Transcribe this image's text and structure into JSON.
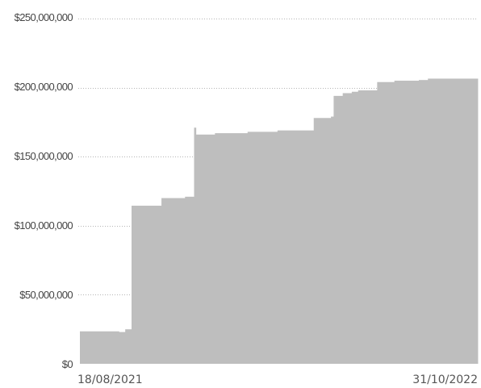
{
  "chart_data": {
    "type": "area",
    "step": true,
    "title": "",
    "xlabel": "",
    "ylabel": "",
    "ylim": [
      0,
      250000000
    ],
    "grid": true,
    "y_tick_values": [
      0,
      50000000,
      100000000,
      150000000,
      200000000,
      250000000
    ],
    "y_tick_labels": [
      "$0",
      "$50,000,000",
      "$100,000,000",
      "$150,000,000",
      "$200,000,000",
      "$250,000,000"
    ],
    "x_tick_labels": [
      "18/08/2021",
      "31/10/2022"
    ],
    "x_start": "2021-08-18",
    "x_end": "2022-10-31",
    "color": "#bebebe",
    "points": [
      {
        "x": "2021-08-18",
        "y": 23500000
      },
      {
        "x": "2021-09-30",
        "y": 23000000
      },
      {
        "x": "2021-10-07",
        "y": 25000000
      },
      {
        "x": "2021-10-14",
        "y": 114500000
      },
      {
        "x": "2021-11-16",
        "y": 120000000
      },
      {
        "x": "2021-12-12",
        "y": 121000000
      },
      {
        "x": "2021-12-22",
        "y": 171000000
      },
      {
        "x": "2021-12-24",
        "y": 166000000
      },
      {
        "x": "2022-01-14",
        "y": 167000000
      },
      {
        "x": "2022-02-19",
        "y": 168000000
      },
      {
        "x": "2022-03-24",
        "y": 169000000
      },
      {
        "x": "2022-05-03",
        "y": 178000000
      },
      {
        "x": "2022-05-22",
        "y": 179000000
      },
      {
        "x": "2022-05-25",
        "y": 194000000
      },
      {
        "x": "2022-06-04",
        "y": 196000000
      },
      {
        "x": "2022-06-14",
        "y": 197000000
      },
      {
        "x": "2022-06-21",
        "y": 198000000
      },
      {
        "x": "2022-07-12",
        "y": 204000000
      },
      {
        "x": "2022-07-31",
        "y": 205000000
      },
      {
        "x": "2022-08-27",
        "y": 205500000
      },
      {
        "x": "2022-09-06",
        "y": 206500000
      }
    ]
  }
}
